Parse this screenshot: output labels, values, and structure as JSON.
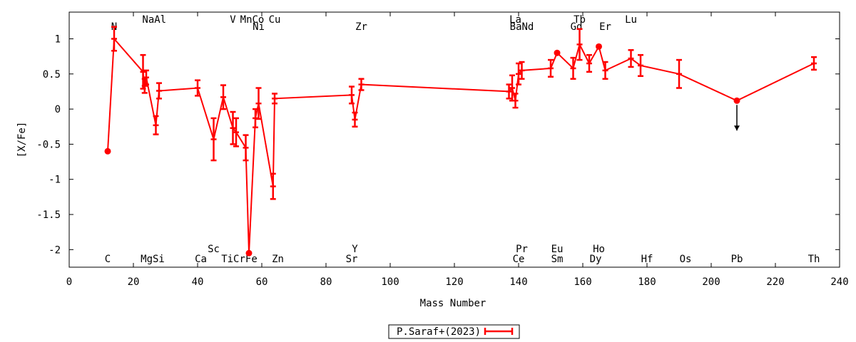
{
  "chart_data": {
    "type": "line",
    "title": "",
    "xlabel": "Mass Number",
    "ylabel": "[X/Fe]",
    "xlim": [
      0,
      240
    ],
    "ylim": [
      -2.25,
      1.38
    ],
    "x_ticks": [
      0,
      20,
      40,
      60,
      80,
      100,
      120,
      140,
      160,
      180,
      200,
      220,
      240
    ],
    "y_ticks": [
      -2,
      -1.5,
      -1,
      -0.5,
      0,
      0.5,
      1
    ],
    "x_tick_labels": [
      "0",
      "20",
      "40",
      "60",
      "80",
      "100",
      "120",
      "140",
      "160",
      "180",
      "200",
      "220",
      "240"
    ],
    "y_tick_labels": [
      "-2",
      "-1.5",
      "-1",
      "-0.5",
      "0",
      "0.5",
      "1"
    ],
    "grid": false,
    "legend_position": "bottom-center",
    "series": [
      {
        "name": "P.Saraf+(2023)",
        "color": "#ff0000",
        "points": [
          {
            "x": 12,
            "y": -0.6,
            "err": 0.0
          },
          {
            "x": 14,
            "y": 1.0,
            "err": 0.17
          },
          {
            "x": 23,
            "y": 0.53,
            "err": 0.24
          },
          {
            "x": 23.5,
            "y": 0.33,
            "err": 0.1
          },
          {
            "x": 24,
            "y": 0.45,
            "err": 0.1
          },
          {
            "x": 27,
            "y": -0.23,
            "err": 0.13
          },
          {
            "x": 28,
            "y": 0.26,
            "err": 0.11
          },
          {
            "x": 40,
            "y": 0.3,
            "err": 0.11
          },
          {
            "x": 45,
            "y": -0.43,
            "err": 0.3
          },
          {
            "x": 48,
            "y": 0.17,
            "err": 0.17
          },
          {
            "x": 51,
            "y": -0.27,
            "err": 0.23
          },
          {
            "x": 52,
            "y": -0.33,
            "err": 0.2
          },
          {
            "x": 55,
            "y": -0.55,
            "err": 0.18
          },
          {
            "x": 56,
            "y": -2.05,
            "err": 0.0
          },
          {
            "x": 58,
            "y": -0.13,
            "err": 0.13
          },
          {
            "x": 59,
            "y": 0.08,
            "err": 0.22
          },
          {
            "x": 63.5,
            "y": -1.1,
            "err": 0.18
          },
          {
            "x": 64,
            "y": 0.15,
            "err": 0.07
          },
          {
            "x": 88,
            "y": 0.2,
            "err": 0.12
          },
          {
            "x": 89,
            "y": -0.15,
            "err": 0.1
          },
          {
            "x": 91,
            "y": 0.35,
            "err": 0.08
          },
          {
            "x": 137,
            "y": 0.25,
            "err": 0.1
          },
          {
            "x": 138,
            "y": 0.3,
            "err": 0.18
          },
          {
            "x": 139,
            "y": 0.12,
            "err": 0.1
          },
          {
            "x": 140,
            "y": 0.5,
            "err": 0.15
          },
          {
            "x": 141,
            "y": 0.55,
            "err": 0.12
          },
          {
            "x": 150,
            "y": 0.58,
            "err": 0.12
          },
          {
            "x": 152,
            "y": 0.8,
            "err": 0.0
          },
          {
            "x": 157,
            "y": 0.58,
            "err": 0.15
          },
          {
            "x": 159,
            "y": 0.92,
            "err": 0.22
          },
          {
            "x": 162,
            "y": 0.65,
            "err": 0.12
          },
          {
            "x": 165,
            "y": 0.89,
            "err": 0.0
          },
          {
            "x": 167,
            "y": 0.55,
            "err": 0.12
          },
          {
            "x": 175,
            "y": 0.72,
            "err": 0.12
          },
          {
            "x": 178,
            "y": 0.62,
            "err": 0.15
          },
          {
            "x": 190,
            "y": 0.5,
            "err": 0.2
          },
          {
            "x": 208,
            "y": 0.12,
            "err": 0.0,
            "upper_limit": true
          },
          {
            "x": 232,
            "y": 0.65,
            "err": 0.09
          }
        ]
      }
    ],
    "element_labels_top": [
      {
        "text": "N",
        "x": 14,
        "row": 2
      },
      {
        "text": "NaAl",
        "x": 26.5,
        "row": 1
      },
      {
        "text": "V",
        "x": 51,
        "row": 1
      },
      {
        "text": "MnCo",
        "x": 57,
        "row": 1
      },
      {
        "text": "Ni",
        "x": 59,
        "row": 2
      },
      {
        "text": "Cu",
        "x": 64,
        "row": 1
      },
      {
        "text": "Zr",
        "x": 91,
        "row": 2
      },
      {
        "text": "La",
        "x": 139,
        "row": 1
      },
      {
        "text": "BaNd",
        "x": 141,
        "row": 2
      },
      {
        "text": "Tb",
        "x": 159,
        "row": 1
      },
      {
        "text": "Gd",
        "x": 158,
        "row": 2
      },
      {
        "text": "Er",
        "x": 167,
        "row": 2
      },
      {
        "text": "Lu",
        "x": 175,
        "row": 1
      }
    ],
    "element_labels_bottom": [
      {
        "text": "Sc",
        "x": 45,
        "row": 1
      },
      {
        "text": "Y",
        "x": 89,
        "row": 1
      },
      {
        "text": "Pr",
        "x": 141,
        "row": 1
      },
      {
        "text": "Eu",
        "x": 152,
        "row": 1
      },
      {
        "text": "Ho",
        "x": 165,
        "row": 1
      },
      {
        "text": "C",
        "x": 12,
        "row": 2
      },
      {
        "text": "MgSi",
        "x": 26,
        "row": 2
      },
      {
        "text": "Ca",
        "x": 41,
        "row": 2
      },
      {
        "text": "TiCrFe",
        "x": 53,
        "row": 2
      },
      {
        "text": "Zn",
        "x": 65,
        "row": 2
      },
      {
        "text": "Sr",
        "x": 88,
        "row": 2
      },
      {
        "text": "Ce",
        "x": 140,
        "row": 2
      },
      {
        "text": "Sm",
        "x": 152,
        "row": 2
      },
      {
        "text": "Dy",
        "x": 164,
        "row": 2
      },
      {
        "text": "Hf",
        "x": 180,
        "row": 2
      },
      {
        "text": "Os",
        "x": 192,
        "row": 2
      },
      {
        "text": "Pb",
        "x": 208,
        "row": 2
      },
      {
        "text": "Th",
        "x": 232,
        "row": 2
      }
    ]
  }
}
